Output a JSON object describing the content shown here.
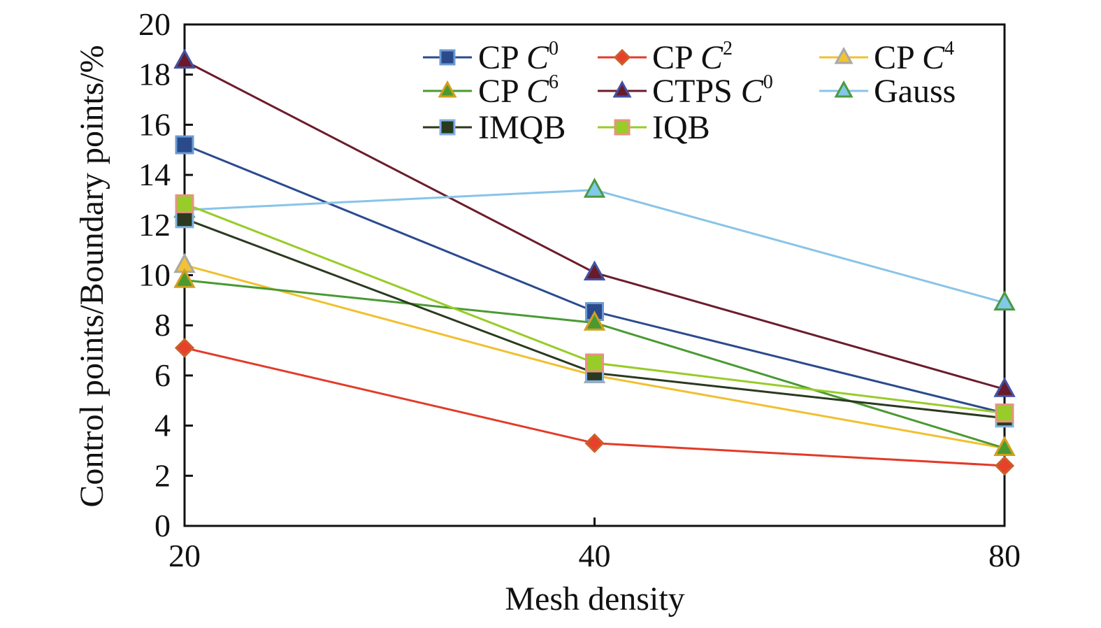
{
  "chart_data": {
    "type": "line",
    "xlabel": "Mesh density",
    "ylabel": "Control points/Boundary points/%",
    "categories": [
      "20",
      "40",
      "80"
    ],
    "ylim": [
      0,
      20
    ],
    "yticks": [
      "0",
      "2",
      "4",
      "6",
      "8",
      "10",
      "12",
      "14",
      "16",
      "18",
      "20"
    ],
    "grid": false,
    "legend_placement": "top-right",
    "series": [
      {
        "name": "CP C0",
        "prefix": "CP ",
        "var": "C",
        "sup": "0",
        "values": [
          15.2,
          8.55,
          4.5
        ],
        "marker": "square",
        "line": "#2b4b8e",
        "fill": "#2a4a8c",
        "stroke": "#6c9bd2"
      },
      {
        "name": "CP C2",
        "prefix": "CP ",
        "var": "C",
        "sup": "2",
        "values": [
          7.1,
          3.3,
          2.4
        ],
        "marker": "diamond",
        "line": "#e23b28",
        "fill": "#e8402a",
        "stroke": "#c8602e"
      },
      {
        "name": "CP C4",
        "prefix": "CP ",
        "var": "C",
        "sup": "4",
        "values": [
          10.4,
          6.0,
          3.1
        ],
        "marker": "triangle",
        "line": "#f0c030",
        "fill": "#f2c232",
        "stroke": "#a8a8a8"
      },
      {
        "name": "CP C6",
        "prefix": "CP ",
        "var": "C",
        "sup": "6",
        "values": [
          9.8,
          8.1,
          3.1
        ],
        "marker": "triangle",
        "line": "#4a9a32",
        "fill": "#4a9a30",
        "stroke": "#d0a020"
      },
      {
        "name": "CTPS C0",
        "prefix": "CTPS ",
        "var": "C",
        "sup": "0",
        "values": [
          18.55,
          10.1,
          5.45
        ],
        "marker": "triangle",
        "line": "#6c1c2c",
        "fill": "#6a1a2a",
        "stroke": "#4252a2"
      },
      {
        "name": "Gauss",
        "prefix": "Gauss",
        "var": "",
        "sup": "",
        "values": [
          12.6,
          13.4,
          8.9
        ],
        "marker": "triangle",
        "line": "#88c4e8",
        "fill": "#82c8e8",
        "stroke": "#4a9a40"
      },
      {
        "name": "IMQB",
        "prefix": "IMQB",
        "var": "",
        "sup": "",
        "values": [
          12.25,
          6.1,
          4.3
        ],
        "marker": "square",
        "line": "#2a3a20",
        "fill": "#2a3a20",
        "stroke": "#82b2e2"
      },
      {
        "name": "IQB",
        "prefix": "IQB",
        "var": "",
        "sup": "",
        "values": [
          12.85,
          6.5,
          4.5
        ],
        "marker": "square",
        "line": "#98cc28",
        "fill": "#98cc28",
        "stroke": "#e89282"
      }
    ]
  }
}
